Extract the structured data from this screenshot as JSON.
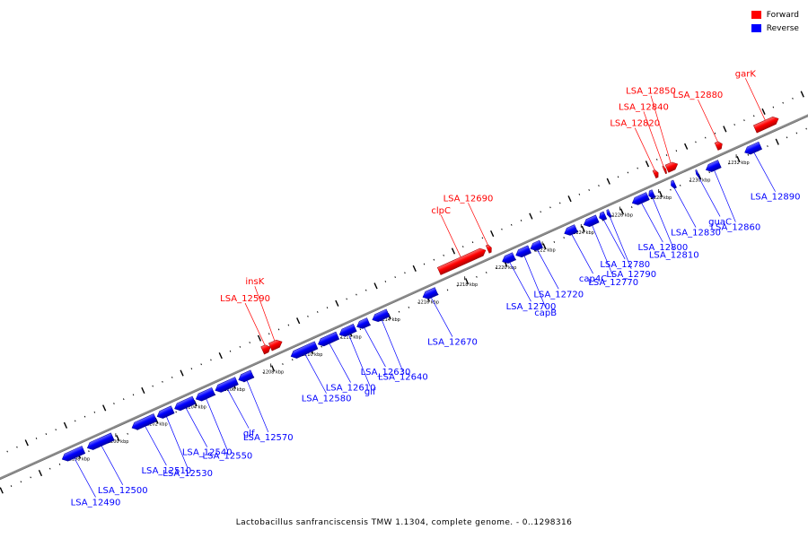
{
  "legend": [
    {
      "label": "Forward",
      "color": "#ff0000"
    },
    {
      "label": "Reverse",
      "color": "#0000ff"
    }
  ],
  "caption": "Lactobacillus sanfranciscensis TMW 1.1304, complete genome. - 0..1298316",
  "colors": {
    "forward": "#ff0000",
    "reverse": "#0000ff",
    "backbone": "#8c8c8c"
  },
  "genes": [
    {
      "name": "LSA_12490",
      "strand": "reverse",
      "start": 1197.2,
      "end": 1198.3
    },
    {
      "name": "LSA_12500",
      "strand": "reverse",
      "start": 1198.5,
      "end": 1199.8
    },
    {
      "name": "LSA_12510",
      "strand": "reverse",
      "start": 1200.8,
      "end": 1202.0
    },
    {
      "name": "LSA_12530",
      "strand": "reverse",
      "start": 1202.1,
      "end": 1202.9
    },
    {
      "name": "LSA_12540",
      "strand": "reverse",
      "start": 1203.0,
      "end": 1204.0
    },
    {
      "name": "LSA_12550",
      "strand": "reverse",
      "start": 1204.1,
      "end": 1205.0
    },
    {
      "name": "glf",
      "strand": "reverse",
      "start": 1205.1,
      "end": 1206.2
    },
    {
      "name": "LSA_12570",
      "strand": "reverse",
      "start": 1206.3,
      "end": 1207.0
    },
    {
      "name": "LSA_12590",
      "strand": "forward",
      "start": 1207.9,
      "end": 1208.3
    },
    {
      "name": "insK",
      "strand": "forward",
      "start": 1208.3,
      "end": 1208.9
    },
    {
      "name": "LSA_12580",
      "strand": "reverse",
      "start": 1209.0,
      "end": 1210.3
    },
    {
      "name": "LSA_12610",
      "strand": "reverse",
      "start": 1210.4,
      "end": 1211.4
    },
    {
      "name": "glf",
      "strand": "reverse",
      "start": 1211.5,
      "end": 1212.3
    },
    {
      "name": "LSA_12630",
      "strand": "reverse",
      "start": 1212.4,
      "end": 1213.0
    },
    {
      "name": "LSA_12640",
      "strand": "reverse",
      "start": 1213.2,
      "end": 1214.0
    },
    {
      "name": "LSA_12670",
      "strand": "reverse",
      "start": 1215.8,
      "end": 1216.5
    },
    {
      "name": "clpC",
      "strand": "forward",
      "start": 1217.0,
      "end": 1219.4
    },
    {
      "name": "LSA_12690",
      "strand": "forward",
      "start": 1219.5,
      "end": 1219.7
    },
    {
      "name": "LSA_12700",
      "strand": "reverse",
      "start": 1219.9,
      "end": 1220.5
    },
    {
      "name": "capB",
      "strand": "reverse",
      "start": 1220.6,
      "end": 1221.3
    },
    {
      "name": "LSA_12720",
      "strand": "reverse",
      "start": 1221.35,
      "end": 1221.9
    },
    {
      "name": "cap4C",
      "strand": "reverse",
      "start": 1223.1,
      "end": 1223.7
    },
    {
      "name": "LSA_12770",
      "strand": "reverse",
      "start": 1224.1,
      "end": 1224.8
    },
    {
      "name": "LSA_12780",
      "strand": "reverse",
      "start": 1224.9,
      "end": 1225.2
    },
    {
      "name": "LSA_12790",
      "strand": "reverse",
      "start": 1225.3,
      "end": 1225.45
    },
    {
      "name": "LSA_12800",
      "strand": "reverse",
      "start": 1226.6,
      "end": 1227.4
    },
    {
      "name": "LSA_12810",
      "strand": "reverse",
      "start": 1227.45,
      "end": 1227.7
    },
    {
      "name": "LSA_12820",
      "strand": "forward",
      "start": 1228.1,
      "end": 1228.3
    },
    {
      "name": "LSA_12840",
      "strand": "forward",
      "start": 1228.6,
      "end": 1228.7
    },
    {
      "name": "LSA_12830",
      "strand": "reverse",
      "start": 1228.6,
      "end": 1228.8
    },
    {
      "name": "LSA_12850",
      "strand": "forward",
      "start": 1228.75,
      "end": 1229.3
    },
    {
      "name": "guaC",
      "strand": "reverse",
      "start": 1229.9,
      "end": 1230.0
    },
    {
      "name": "LSA_12860",
      "strand": "reverse",
      "start": 1230.4,
      "end": 1231.1
    },
    {
      "name": "LSA_12880",
      "strand": "forward",
      "start": 1231.3,
      "end": 1231.6
    },
    {
      "name": "LSA_12890",
      "strand": "reverse",
      "start": 1232.4,
      "end": 1233.2
    },
    {
      "name": "garK",
      "strand": "forward",
      "start": 1233.3,
      "end": 1234.5
    }
  ],
  "scale_ticks": [
    "1198 kbp",
    "1200 kbp",
    "1202 kbp",
    "1204 kbp",
    "1206 kbp",
    "1208 kbp",
    "1210 kbp",
    "1212 kbp",
    "1214 kbp",
    "1216 kbp",
    "1218 kbp",
    "1220 kbp",
    "1222 kbp",
    "1224 kbp",
    "1226 kbp",
    "1228 kbp",
    "1230 kbp",
    "1232 kbp"
  ],
  "tick_positions": [
    1198,
    1200,
    1202,
    1204,
    1206,
    1208,
    1210,
    1212,
    1214,
    1216,
    1218,
    1220,
    1222,
    1224,
    1226,
    1228,
    1230,
    1232
  ]
}
